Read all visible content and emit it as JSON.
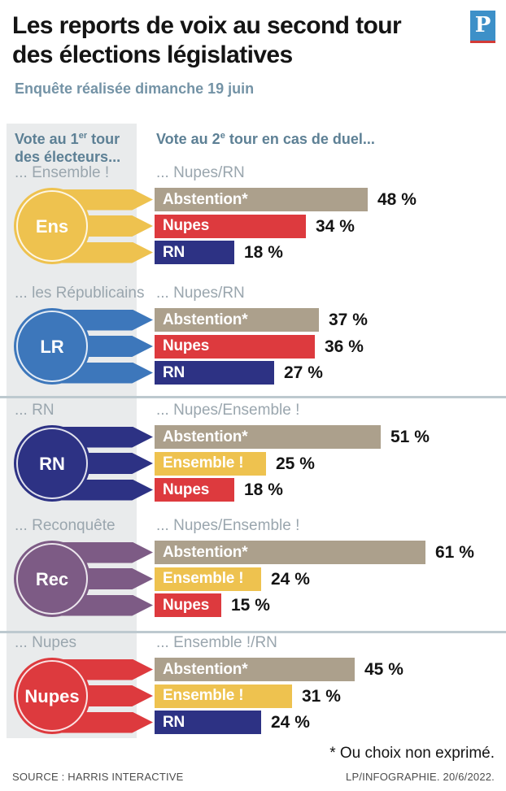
{
  "header": {
    "title_line1": "Les reports de voix au second tour",
    "title_line2": "des élections législatives",
    "subtitle": "Enquête réalisée dimanche 19 juin",
    "logo_letter": "P"
  },
  "columns": {
    "left": {
      "pre": "Vote au 1",
      "sup": "er",
      "post": " tour",
      "line2": "des électeurs..."
    },
    "right": {
      "pre": "Vote au 2",
      "sup": "e",
      "post": " tour en cas de duel..."
    }
  },
  "palette": {
    "ensemble_yellow": "#eec24f",
    "lr_blue": "#3d77bb",
    "rn_navy": "#2d3284",
    "reconquete_purple": "#7d5b85",
    "nupes_red": "#dd3a3e",
    "abstention_taupe": "#aca08c",
    "panel_gray": "#e9ebec",
    "divider_gray": "#bdc9cf",
    "header_steel_blue": "#5d8095",
    "label_gray": "#9aa6ae",
    "logo_blue": "#3d90c8",
    "logo_red": "#d23b37"
  },
  "sections": [
    {
      "id": "ensemble",
      "source_label": "... Ensemble !",
      "duel_label": "... Nupes/RN",
      "circle": {
        "label": "Ens",
        "color": "#eec24f"
      },
      "bars": [
        {
          "label": "Abstention*",
          "value": 48,
          "display": "48 %",
          "color": "#aca08c"
        },
        {
          "label": "Nupes",
          "value": 34,
          "display": "34 %",
          "color": "#dd3a3e"
        },
        {
          "label": "RN",
          "value": 18,
          "display": "18 %",
          "color": "#2d3284"
        }
      ]
    },
    {
      "id": "lr",
      "source_label": "... les Républicains",
      "duel_label": "... Nupes/RN",
      "circle": {
        "label": "LR",
        "color": "#3d77bb"
      },
      "bars": [
        {
          "label": "Abstention*",
          "value": 37,
          "display": "37 %",
          "color": "#aca08c"
        },
        {
          "label": "Nupes",
          "value": 36,
          "display": "36 %",
          "color": "#dd3a3e"
        },
        {
          "label": "RN",
          "value": 27,
          "display": "27 %",
          "color": "#2d3284"
        }
      ]
    },
    {
      "id": "rn",
      "source_label": "... RN",
      "duel_label": "... Nupes/Ensemble !",
      "circle": {
        "label": "RN",
        "color": "#2d3284"
      },
      "bars": [
        {
          "label": "Abstention*",
          "value": 51,
          "display": "51 %",
          "color": "#aca08c"
        },
        {
          "label": "Ensemble !",
          "value": 25,
          "display": "25 %",
          "color": "#eec24f"
        },
        {
          "label": "Nupes",
          "value": 18,
          "display": "18 %",
          "color": "#dd3a3e"
        }
      ]
    },
    {
      "id": "reconquete",
      "source_label": "... Reconquête",
      "duel_label": "... Nupes/Ensemble !",
      "circle": {
        "label": "Rec",
        "color": "#7d5b85"
      },
      "bars": [
        {
          "label": "Abstention*",
          "value": 61,
          "display": "61 %",
          "color": "#aca08c"
        },
        {
          "label": "Ensemble !",
          "value": 24,
          "display": "24 %",
          "color": "#eec24f"
        },
        {
          "label": "Nupes",
          "value": 15,
          "display": "15 %",
          "color": "#dd3a3e"
        }
      ]
    },
    {
      "id": "nupes",
      "source_label": "... Nupes",
      "duel_label": "... Ensemble !/RN",
      "circle": {
        "label": "Nupes",
        "color": "#dd3a3e"
      },
      "bars": [
        {
          "label": "Abstention*",
          "value": 45,
          "display": "45 %",
          "color": "#aca08c"
        },
        {
          "label": "Ensemble !",
          "value": 31,
          "display": "31 %",
          "color": "#eec24f"
        },
        {
          "label": "RN",
          "value": 24,
          "display": "24 %",
          "color": "#2d3284"
        }
      ]
    }
  ],
  "footer": {
    "note": "* Ou choix non exprimé.",
    "source": "SOURCE : HARRIS INTERACTIVE",
    "credit": "LP/INFOGRAPHIE.  20/6/2022."
  },
  "chart_data": [
    {
      "type": "bar",
      "title": "Vote au 2e tour des électeurs Ensemble ! en cas de duel Nupes/RN",
      "categories": [
        "Abstention*",
        "Nupes",
        "RN"
      ],
      "values": [
        48,
        34,
        18
      ],
      "unit": "%",
      "xlim": [
        0,
        61
      ],
      "orientation": "horizontal"
    },
    {
      "type": "bar",
      "title": "Vote au 2e tour des électeurs les Républicains en cas de duel Nupes/RN",
      "categories": [
        "Abstention*",
        "Nupes",
        "RN"
      ],
      "values": [
        37,
        36,
        27
      ],
      "unit": "%",
      "xlim": [
        0,
        61
      ],
      "orientation": "horizontal"
    },
    {
      "type": "bar",
      "title": "Vote au 2e tour des électeurs RN en cas de duel Nupes/Ensemble !",
      "categories": [
        "Abstention*",
        "Ensemble !",
        "Nupes"
      ],
      "values": [
        51,
        25,
        18
      ],
      "unit": "%",
      "xlim": [
        0,
        61
      ],
      "orientation": "horizontal"
    },
    {
      "type": "bar",
      "title": "Vote au 2e tour des électeurs Reconquête en cas de duel Nupes/Ensemble !",
      "categories": [
        "Abstention*",
        "Ensemble !",
        "Nupes"
      ],
      "values": [
        61,
        24,
        15
      ],
      "unit": "%",
      "xlim": [
        0,
        61
      ],
      "orientation": "horizontal"
    },
    {
      "type": "bar",
      "title": "Vote au 2e tour des électeurs Nupes en cas de duel Ensemble !/RN",
      "categories": [
        "Abstention*",
        "Ensemble !",
        "RN"
      ],
      "values": [
        45,
        31,
        24
      ],
      "unit": "%",
      "xlim": [
        0,
        61
      ],
      "orientation": "horizontal"
    }
  ]
}
